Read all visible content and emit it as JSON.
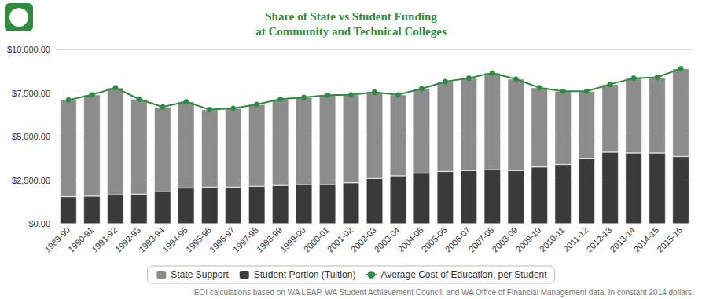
{
  "chart_data": {
    "type": "bar",
    "title": "Share of State vs Student Funding\nat Community and Technical Colleges",
    "note": "EOI calculations based on WA LEAP, WA Student Achievement Council, and WA Office of Financial Management data. In constant 2014 dollars.",
    "categories": [
      "1989-90",
      "1990-91",
      "1991-92",
      "1992-93",
      "1993-94",
      "1994-95",
      "1995-96",
      "1996-97",
      "1997-98",
      "1998-99",
      "1999-00",
      "2000-01",
      "2001-02",
      "2002-03",
      "2003-04",
      "2004-05",
      "2005-06",
      "2006-07",
      "2007-08",
      "2008-09",
      "2009-10",
      "2010-11",
      "2011-12",
      "2012-13",
      "2013-14",
      "2014-15",
      "2015-16"
    ],
    "series": [
      {
        "name": "State Support",
        "type": "bar",
        "color": "#8c8c8c",
        "values": [
          5550,
          5820,
          6150,
          5450,
          4850,
          4950,
          4450,
          4520,
          4700,
          4950,
          5000,
          5130,
          5050,
          4950,
          4650,
          4850,
          5150,
          5300,
          5550,
          5250,
          4550,
          4200,
          3850,
          3900,
          4300,
          4350,
          5050
        ]
      },
      {
        "name": "Student Portion (Tuition)",
        "type": "bar",
        "color": "#3a3a3a",
        "values": [
          1550,
          1580,
          1650,
          1700,
          1850,
          2050,
          2100,
          2100,
          2150,
          2200,
          2250,
          2250,
          2350,
          2600,
          2750,
          2900,
          3000,
          3050,
          3100,
          3050,
          3250,
          3400,
          3750,
          4100,
          4050,
          4050,
          3850
        ]
      },
      {
        "name": "Average Cost of Education, per Student",
        "type": "line",
        "color": "#2e8b40",
        "marker": "circle",
        "line_style": "solid",
        "values": [
          7100,
          7400,
          7800,
          7150,
          6700,
          7000,
          6550,
          6620,
          6850,
          7150,
          7250,
          7380,
          7400,
          7550,
          7400,
          7750,
          8150,
          8350,
          8650,
          8300,
          7800,
          7600,
          7600,
          8000,
          8350,
          8400,
          8900
        ]
      }
    ],
    "stacked": true,
    "ylim": [
      0,
      10000
    ],
    "yticks": [
      {
        "value": 0,
        "label": "$0.00"
      },
      {
        "value": 2500,
        "label": "$2,500.00"
      },
      {
        "value": 5000,
        "label": "$5,000.00"
      },
      {
        "value": 7500,
        "label": "$7,500.00"
      },
      {
        "value": 10000,
        "label": "$10,000.00"
      }
    ],
    "grid": true,
    "legend": "bottom"
  }
}
